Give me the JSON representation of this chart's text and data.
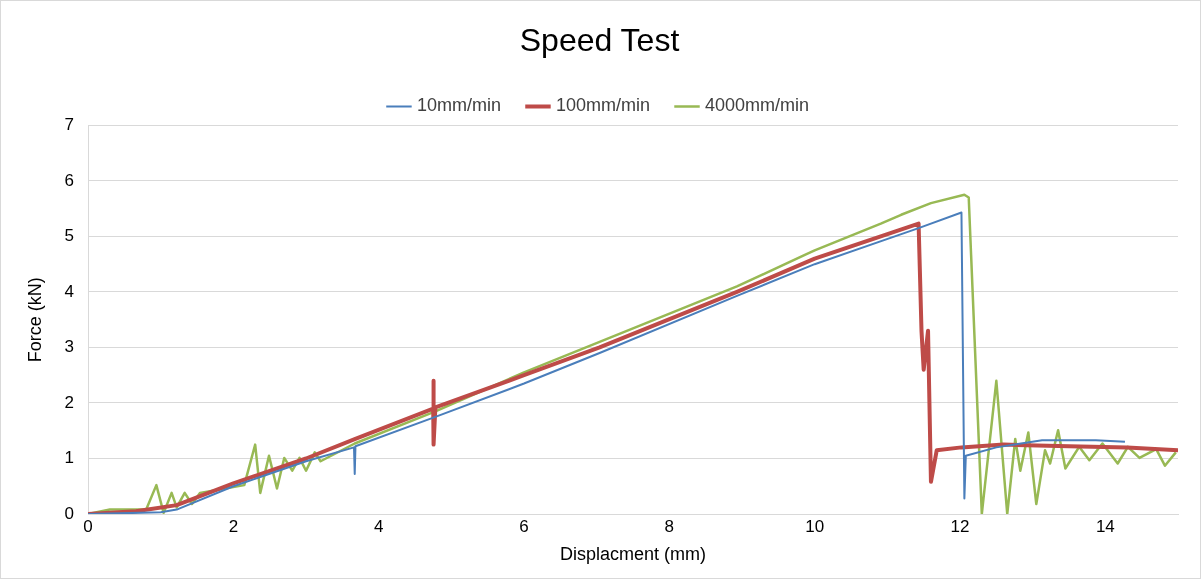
{
  "chart_data": {
    "type": "line",
    "title": "Speed Test",
    "xlabel": "Displacment (mm)",
    "ylabel": "Force (kN)",
    "xlim": [
      0,
      15
    ],
    "xticks": [
      0,
      2,
      4,
      6,
      8,
      10,
      12,
      14
    ],
    "ylim": [
      0,
      7
    ],
    "yticks": [
      0,
      1,
      2,
      3,
      4,
      5,
      6,
      7
    ],
    "grid": "y",
    "legend": "top",
    "marker": "none",
    "line_style": "solid",
    "series": [
      {
        "name": "10mm/min",
        "color": "#4a7ebb",
        "x": [
          0,
          1.0,
          1.22,
          2,
          3,
          3.66,
          3.67,
          3.68,
          4.78,
          6,
          7.04,
          8.93,
          10,
          11.43,
          12.02,
          12.06,
          12.08,
          12.5,
          13.13,
          13.87,
          14.27
        ],
        "values": [
          0,
          0.03,
          0.08,
          0.5,
          0.95,
          1.2,
          0.72,
          1.22,
          1.75,
          2.35,
          2.9,
          3.93,
          4.5,
          5.15,
          5.43,
          0.28,
          1.05,
          1.2,
          1.33,
          1.33,
          1.3
        ]
      },
      {
        "name": "100mm/min",
        "color": "#be4b48",
        "x": [
          0,
          0.66,
          1.22,
          2,
          3,
          3.67,
          4.75,
          4.75,
          4.76,
          4.78,
          6,
          7.04,
          8.93,
          10,
          11.43,
          11.47,
          11.5,
          11.56,
          11.6,
          11.68,
          12.02,
          12.6,
          13.5,
          14.3,
          15
        ],
        "values": [
          0,
          0.05,
          0.16,
          0.55,
          1.0,
          1.35,
          1.9,
          2.4,
          1.25,
          1.92,
          2.5,
          3.0,
          4.0,
          4.6,
          5.23,
          3.3,
          2.6,
          3.3,
          0.58,
          1.15,
          1.2,
          1.25,
          1.22,
          1.2,
          1.15
        ]
      },
      {
        "name": "4000mm/min",
        "color": "#98b954",
        "x": [
          0,
          0.3,
          0.8,
          0.94,
          1.04,
          1.15,
          1.22,
          1.33,
          1.43,
          1.54,
          2.15,
          2.3,
          2.37,
          2.49,
          2.6,
          2.7,
          2.81,
          2.91,
          3.0,
          3.12,
          3.2,
          3.67,
          4.78,
          6,
          7.04,
          8.93,
          10,
          10.91,
          11.19,
          11.6,
          12.06,
          12.12,
          12.3,
          12.5,
          12.65,
          12.76,
          12.83,
          12.94,
          13.05,
          13.17,
          13.24,
          13.35,
          13.45,
          13.64,
          13.78,
          13.96,
          14.17,
          14.31,
          14.47,
          14.7,
          14.82,
          14.97
        ],
        "values": [
          0,
          0.08,
          0.08,
          0.52,
          0.02,
          0.38,
          0.12,
          0.38,
          0.18,
          0.38,
          0.52,
          1.25,
          0.38,
          1.05,
          0.46,
          1.01,
          0.78,
          1.01,
          0.78,
          1.11,
          0.95,
          1.27,
          1.85,
          2.55,
          3.1,
          4.1,
          4.75,
          5.23,
          5.39,
          5.6,
          5.75,
          5.7,
          0,
          2.4,
          0,
          1.35,
          0.78,
          1.47,
          0.18,
          1.15,
          0.91,
          1.51,
          0.82,
          1.21,
          0.97,
          1.27,
          0.91,
          1.21,
          1.01,
          1.17,
          0.87,
          1.11
        ]
      }
    ]
  }
}
